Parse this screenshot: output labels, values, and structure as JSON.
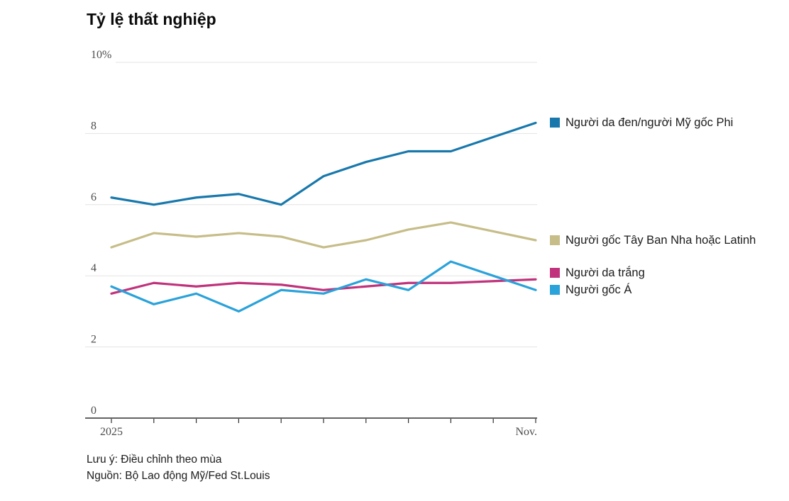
{
  "title": "Tỷ lệ thất nghiệp",
  "chart_data": {
    "type": "line",
    "title": "Tỷ lệ thất nghiệp",
    "x_axis": {
      "ticks_count": 11,
      "first_label": "2025",
      "last_label": "Nov.",
      "note": "monthly ticks Jan-Nov 2025, only first and last labeled"
    },
    "y_axis": {
      "ticks": [
        "10%",
        "8",
        "6",
        "4",
        "2",
        "0"
      ],
      "values": [
        10,
        8,
        6,
        4,
        2,
        0
      ],
      "range": [
        0,
        10
      ],
      "unit": "%"
    },
    "grid": true,
    "legend_position": "right-of-line-ends",
    "series": [
      {
        "name": "Người da đen/người Mỹ gốc Phi",
        "color": "#1878ac",
        "values": [
          6.2,
          6.0,
          6.2,
          6.3,
          6.0,
          6.8,
          7.2,
          7.5,
          7.5,
          7.9,
          8.3
        ]
      },
      {
        "name": "Người gốc Tây Ban Nha hoặc Latinh",
        "color": "#c6bd88",
        "values": [
          4.8,
          5.2,
          5.1,
          5.2,
          5.1,
          4.8,
          5.0,
          5.3,
          5.5,
          5.25,
          5.0
        ]
      },
      {
        "name": "Người da trắng",
        "color": "#c0337c",
        "values": [
          3.5,
          3.8,
          3.7,
          3.8,
          3.75,
          3.6,
          3.7,
          3.8,
          3.8,
          3.85,
          3.9
        ]
      },
      {
        "name": "Người gốc Á",
        "color": "#2aa2da",
        "values": [
          3.7,
          3.2,
          3.5,
          3.0,
          3.6,
          3.5,
          3.9,
          3.6,
          4.4,
          4.0,
          3.6
        ]
      }
    ],
    "colors": {
      "gridline": "#e3e3e3",
      "axis": "#2f2f2f",
      "tick_text": "#4d4d4d"
    }
  },
  "footnotes": [
    "Lưu ý: Điều chỉnh theo mùa",
    "Nguồn: Bộ Lao động Mỹ/Fed St.Louis"
  ]
}
